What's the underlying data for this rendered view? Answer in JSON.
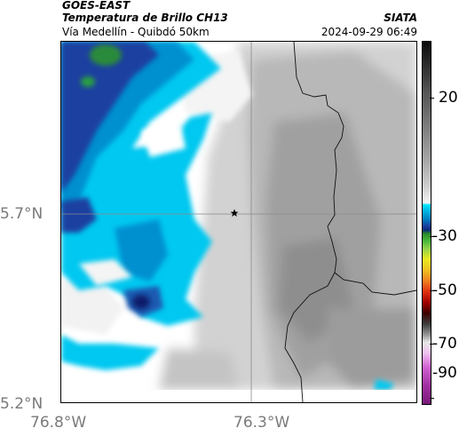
{
  "header": {
    "line1": "GOES-EAST",
    "line2": "Temperatura de Brillo CH13",
    "line3": "Vía Medellín - Quibdó 50km",
    "source": "SIATA",
    "datetime": "2024-09-29 06:49"
  },
  "axes": {
    "lat_labels": [
      "5.7°N",
      "5.2°N"
    ],
    "lon_labels": [
      "76.8°W",
      "76.3°W"
    ]
  },
  "colorbar": {
    "ticks": [
      "20",
      "-30",
      "-50",
      "-70",
      "-90"
    ]
  },
  "colors": {
    "cold_cloud_blue": "#00c8f0",
    "deep_blue": "#0a2a8a",
    "warm_gray": "#a8a8a8",
    "border_line": "#000000"
  },
  "marker": {
    "icon": "star-icon"
  }
}
